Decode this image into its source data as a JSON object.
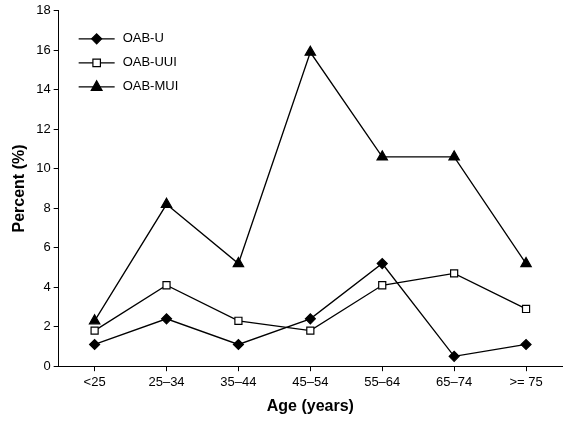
{
  "chart_data": {
    "type": "line",
    "x_label": "Age (years)",
    "y_label": "Percent (%)",
    "categories": [
      "<25",
      "25–34",
      "35–44",
      "45–54",
      "55–64",
      "65–74",
      ">= 75"
    ],
    "series": [
      {
        "name": "OAB-U",
        "color": "#000000",
        "marker": "diamond",
        "values": [
          1.1,
          2.4,
          1.1,
          2.4,
          5.2,
          0.5,
          1.1
        ]
      },
      {
        "name": "OAB-UUI",
        "color": "#000000",
        "marker": "open_square",
        "values": [
          1.8,
          4.1,
          2.3,
          1.8,
          4.1,
          4.7,
          2.9
        ]
      },
      {
        "name": "OAB-MUI",
        "color": "#000000",
        "marker": "triangle",
        "values": [
          2.3,
          8.2,
          5.2,
          15.9,
          10.6,
          10.6,
          5.2
        ]
      }
    ],
    "ylim": [
      0,
      18
    ],
    "yticks": [
      0,
      2,
      4,
      6,
      8,
      10,
      12,
      14,
      16,
      18
    ],
    "grid": false,
    "legend": "top-left"
  }
}
